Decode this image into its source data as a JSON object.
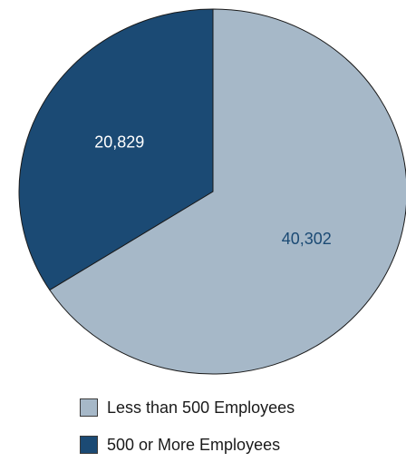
{
  "chart_data": {
    "type": "pie",
    "slices": [
      {
        "label": "Less than 500 Employees",
        "value": 40302,
        "value_label": "40,302",
        "color": "#a6b8c8",
        "label_color": "#1b4a74"
      },
      {
        "label": "500 or More Employees",
        "value": 20829,
        "value_label": "20,829",
        "color": "#1b4a74",
        "label_color": "#ffffff"
      }
    ],
    "legend_position": "bottom"
  }
}
